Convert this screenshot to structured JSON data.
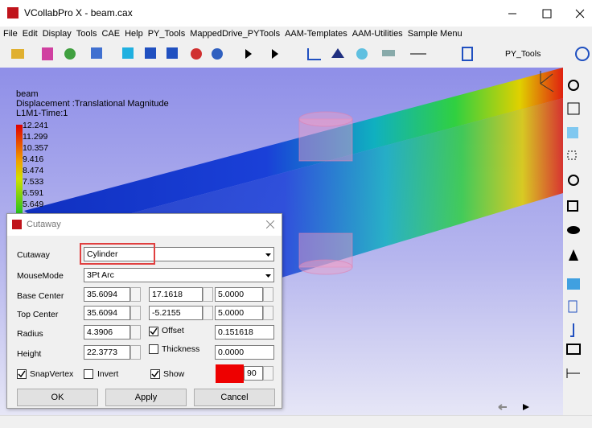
{
  "window": {
    "title": "VCollabPro X - beam.cax"
  },
  "menu": [
    "File",
    "Edit",
    "Display",
    "Tools",
    "CAE",
    "Help",
    "PY_Tools",
    "MappedDrive_PYTools",
    "AAM-Templates",
    "AAM-Utilities",
    "Sample Menu"
  ],
  "toolbar": {
    "dropdown": "PY_Tools"
  },
  "viewport": {
    "model": "beam",
    "result": "Displacement :Translational Magnitude",
    "step": "L1M1-Time:1",
    "legend": [
      "12.241",
      "11.299",
      "10.357",
      "9.416",
      "8.474",
      "7.533",
      "6.591",
      "5.649"
    ]
  },
  "dialog": {
    "title": "Cutaway",
    "cutaway": {
      "label": "Cutaway",
      "value": "Cylinder"
    },
    "mouse_mode": {
      "label": "MouseMode",
      "value": "3Pt Arc"
    },
    "base_center": {
      "label": "Base Center",
      "values": [
        "35.6094",
        "17.1618",
        "5.0000"
      ]
    },
    "top_center": {
      "label": "Top Center",
      "values": [
        "35.6094",
        "-5.2155",
        "5.0000"
      ]
    },
    "radius": {
      "label": "Radius",
      "value": "4.3906",
      "option": "Offset",
      "option_value": "0.151618"
    },
    "height": {
      "label": "Height",
      "value": "22.3773",
      "option": "Thickness",
      "option_value": "0.0000"
    },
    "checks": [
      "SnapVertex",
      "Invert",
      "Show"
    ],
    "show_value": "90",
    "buttons": [
      "OK",
      "Apply",
      "Cancel"
    ]
  }
}
